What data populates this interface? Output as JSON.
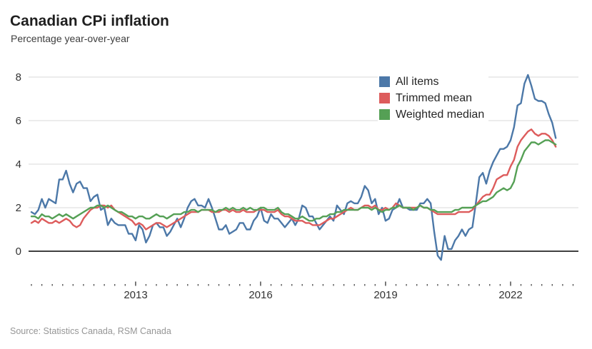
{
  "header": {
    "title": "Canadian CPi inflation",
    "subtitle": "Percentage year-over-year"
  },
  "source": "Source: Statistics Canada, RSM Canada",
  "colors": {
    "all_items": "#4c78a8",
    "trimmed_mean": "#dd5c5c",
    "weighted_median": "#55a055",
    "gridline": "#d9d9d9",
    "zero_line": "#262626"
  },
  "chart_data": {
    "type": "line",
    "title": "Canadian CPi inflation",
    "subtitle": "Percentage year-over-year",
    "xlabel": "",
    "ylabel": "Percentage year-over-year",
    "x_start": "2010-07",
    "x_end": "2023-02",
    "x_interval": "month",
    "xticks": [
      "2013",
      "2016",
      "2019",
      "2022"
    ],
    "yticks": [
      "8",
      "6",
      "4",
      "2",
      "0"
    ],
    "ylim": [
      -1.2,
      8.7
    ],
    "grid": "horizontal",
    "legend_position": "upper-center",
    "series": [
      {
        "name": "All items",
        "color": "#4c78a8",
        "values": [
          1.8,
          1.7,
          1.9,
          2.4,
          2.0,
          2.4,
          2.3,
          2.2,
          3.3,
          3.3,
          3.7,
          3.1,
          2.7,
          3.1,
          3.2,
          2.9,
          2.9,
          2.3,
          2.5,
          2.6,
          1.9,
          2.0,
          1.2,
          1.5,
          1.3,
          1.2,
          1.2,
          1.2,
          0.8,
          0.8,
          0.5,
          1.2,
          1.0,
          0.4,
          0.7,
          1.2,
          1.3,
          1.1,
          1.1,
          0.7,
          0.9,
          1.2,
          1.5,
          1.1,
          1.5,
          2.0,
          2.3,
          2.4,
          2.1,
          2.1,
          2.0,
          2.4,
          2.0,
          1.5,
          1.0,
          1.0,
          1.2,
          0.8,
          0.9,
          1.0,
          1.3,
          1.3,
          1.0,
          1.0,
          1.4,
          1.6,
          2.0,
          1.4,
          1.3,
          1.7,
          1.5,
          1.5,
          1.3,
          1.1,
          1.3,
          1.5,
          1.2,
          1.5,
          2.1,
          2.0,
          1.6,
          1.6,
          1.3,
          1.0,
          1.2,
          1.4,
          1.6,
          1.4,
          2.1,
          1.9,
          1.7,
          2.2,
          2.3,
          2.2,
          2.2,
          2.5,
          3.0,
          2.8,
          2.2,
          2.4,
          1.7,
          2.0,
          1.4,
          1.5,
          1.9,
          2.0,
          2.4,
          2.0,
          2.0,
          1.9,
          1.9,
          1.9,
          2.2,
          2.2,
          2.4,
          2.2,
          0.9,
          -0.2,
          -0.4,
          0.7,
          0.1,
          0.1,
          0.5,
          0.7,
          1.0,
          0.7,
          1.0,
          1.1,
          2.2,
          3.4,
          3.6,
          3.1,
          3.7,
          4.1,
          4.4,
          4.7,
          4.7,
          4.8,
          5.1,
          5.7,
          6.7,
          6.8,
          7.7,
          8.1,
          7.6,
          7.0,
          6.9,
          6.9,
          6.8,
          6.3,
          5.9,
          5.2
        ]
      },
      {
        "name": "Trimmed mean",
        "color": "#dd5c5c",
        "values": [
          1.3,
          1.4,
          1.3,
          1.5,
          1.4,
          1.3,
          1.3,
          1.4,
          1.3,
          1.4,
          1.5,
          1.4,
          1.2,
          1.1,
          1.2,
          1.5,
          1.7,
          1.9,
          2.0,
          2.0,
          2.1,
          2.1,
          2.0,
          2.1,
          1.9,
          1.8,
          1.7,
          1.6,
          1.5,
          1.4,
          1.2,
          1.3,
          1.2,
          1.0,
          1.1,
          1.2,
          1.3,
          1.3,
          1.2,
          1.1,
          1.2,
          1.3,
          1.4,
          1.5,
          1.6,
          1.7,
          1.8,
          1.8,
          1.8,
          1.9,
          1.9,
          1.9,
          1.8,
          1.8,
          1.8,
          1.9,
          1.9,
          1.8,
          1.9,
          1.8,
          1.8,
          1.9,
          1.8,
          1.8,
          1.8,
          1.9,
          1.9,
          1.9,
          1.8,
          1.8,
          1.8,
          1.9,
          1.7,
          1.6,
          1.6,
          1.5,
          1.4,
          1.4,
          1.4,
          1.3,
          1.3,
          1.2,
          1.2,
          1.2,
          1.3,
          1.4,
          1.5,
          1.5,
          1.6,
          1.7,
          1.8,
          1.9,
          2.0,
          1.9,
          1.9,
          2.0,
          2.1,
          2.1,
          2.0,
          2.1,
          1.9,
          1.9,
          2.0,
          1.9,
          2.0,
          2.2,
          2.1,
          2.0,
          2.0,
          2.0,
          2.0,
          2.0,
          2.1,
          2.0,
          2.0,
          1.9,
          1.8,
          1.7,
          1.7,
          1.7,
          1.7,
          1.7,
          1.7,
          1.8,
          1.8,
          1.8,
          1.8,
          1.9,
          2.1,
          2.3,
          2.5,
          2.6,
          2.6,
          2.9,
          3.3,
          3.4,
          3.5,
          3.5,
          3.9,
          4.2,
          4.8,
          5.1,
          5.3,
          5.5,
          5.6,
          5.4,
          5.3,
          5.4,
          5.4,
          5.3,
          5.1,
          4.8
        ]
      },
      {
        "name": "Weighted median",
        "color": "#55a055",
        "values": [
          1.6,
          1.6,
          1.5,
          1.7,
          1.6,
          1.6,
          1.5,
          1.6,
          1.7,
          1.6,
          1.7,
          1.6,
          1.5,
          1.6,
          1.7,
          1.8,
          1.9,
          2.0,
          2.0,
          2.1,
          2.1,
          2.0,
          2.1,
          2.0,
          1.9,
          1.8,
          1.8,
          1.7,
          1.6,
          1.6,
          1.5,
          1.6,
          1.6,
          1.5,
          1.5,
          1.6,
          1.7,
          1.6,
          1.6,
          1.5,
          1.6,
          1.7,
          1.7,
          1.7,
          1.8,
          1.8,
          1.9,
          1.9,
          1.8,
          1.9,
          1.9,
          1.9,
          1.9,
          1.8,
          1.9,
          1.9,
          2.0,
          1.9,
          2.0,
          1.9,
          1.9,
          2.0,
          1.9,
          2.0,
          1.9,
          1.9,
          2.0,
          2.0,
          1.9,
          1.9,
          1.9,
          2.0,
          1.8,
          1.7,
          1.7,
          1.6,
          1.5,
          1.5,
          1.6,
          1.5,
          1.4,
          1.4,
          1.5,
          1.5,
          1.6,
          1.6,
          1.7,
          1.7,
          1.8,
          1.8,
          1.9,
          1.9,
          1.9,
          1.9,
          1.9,
          2.0,
          2.0,
          2.0,
          1.9,
          2.0,
          1.9,
          1.8,
          1.9,
          1.9,
          2.0,
          2.0,
          2.1,
          2.0,
          2.0,
          2.0,
          1.9,
          2.0,
          2.1,
          2.0,
          2.0,
          1.9,
          1.9,
          1.8,
          1.8,
          1.8,
          1.8,
          1.8,
          1.9,
          1.9,
          2.0,
          2.0,
          2.0,
          2.0,
          2.1,
          2.2,
          2.3,
          2.3,
          2.4,
          2.5,
          2.7,
          2.8,
          2.9,
          2.8,
          2.9,
          3.2,
          3.9,
          4.2,
          4.6,
          4.8,
          5.0,
          5.0,
          4.9,
          5.0,
          5.1,
          5.1,
          5.0,
          4.9
        ]
      }
    ]
  }
}
